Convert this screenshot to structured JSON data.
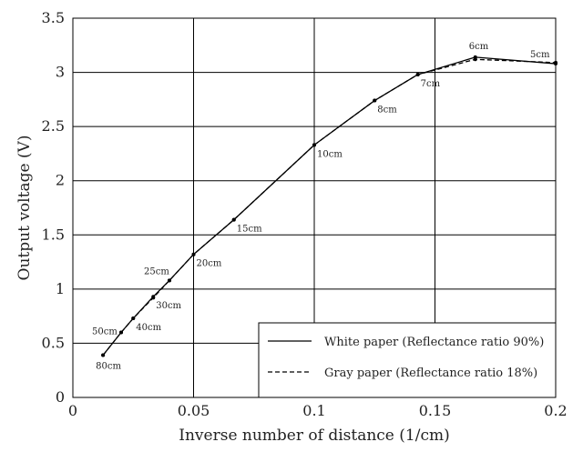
{
  "chart_data": {
    "type": "line",
    "title": "",
    "xlabel": "Inverse number of distance (1/cm)",
    "ylabel": "Output voltage (V)",
    "xlim": [
      0,
      0.2
    ],
    "ylim": [
      0,
      3.5
    ],
    "x_ticks": [
      0,
      0.05,
      0.1,
      0.15,
      0.2
    ],
    "x_tick_labels": [
      "0",
      "0.05",
      "0.1",
      "0.15",
      "0.2"
    ],
    "y_ticks": [
      0,
      0.5,
      1,
      1.5,
      2,
      2.5,
      3,
      3.5
    ],
    "y_tick_labels": [
      "0",
      "0.5",
      "1",
      "1.5",
      "2",
      "2.5",
      "3",
      "3.5"
    ],
    "grid": true,
    "legend_position": "bottom-right",
    "series": [
      {
        "name": "White paper (Reflectance ratio 90%)",
        "style": "solid",
        "color": "#000000",
        "x": [
          0.0125,
          0.02,
          0.025,
          0.0333,
          0.04,
          0.05,
          0.0667,
          0.1,
          0.125,
          0.1429,
          0.1667,
          0.2
        ],
        "y": [
          0.39,
          0.6,
          0.73,
          0.93,
          1.08,
          1.32,
          1.64,
          2.33,
          2.74,
          2.98,
          3.14,
          3.08
        ]
      },
      {
        "name": "Gray paper (Reflectance ratio 18%)",
        "style": "dashed",
        "color": "#000000",
        "x": [
          0.0125,
          0.02,
          0.025,
          0.0333,
          0.04,
          0.05,
          0.0667,
          0.1,
          0.125,
          0.1429,
          0.1667,
          0.2
        ],
        "y": [
          0.39,
          0.6,
          0.73,
          0.92,
          1.08,
          1.32,
          1.64,
          2.33,
          2.74,
          2.98,
          3.12,
          3.09
        ]
      }
    ],
    "point_labels": [
      {
        "x": 0.0125,
        "y": 0.39,
        "text": "80cm",
        "pos": "below"
      },
      {
        "x": 0.02,
        "y": 0.6,
        "text": "50cm",
        "pos": "left"
      },
      {
        "x": 0.025,
        "y": 0.73,
        "text": "40cm",
        "pos": "below-right"
      },
      {
        "x": 0.0333,
        "y": 0.93,
        "text": "30cm",
        "pos": "below-right"
      },
      {
        "x": 0.04,
        "y": 1.08,
        "text": "25cm",
        "pos": "above-left"
      },
      {
        "x": 0.05,
        "y": 1.32,
        "text": "20cm",
        "pos": "below-right"
      },
      {
        "x": 0.0667,
        "y": 1.64,
        "text": "15cm",
        "pos": "below-right"
      },
      {
        "x": 0.1,
        "y": 2.33,
        "text": "10cm",
        "pos": "below-right"
      },
      {
        "x": 0.125,
        "y": 2.74,
        "text": "8cm",
        "pos": "below-right"
      },
      {
        "x": 0.1429,
        "y": 2.98,
        "text": "7cm",
        "pos": "below-right"
      },
      {
        "x": 0.1667,
        "y": 3.14,
        "text": "6cm",
        "pos": "above"
      },
      {
        "x": 0.2,
        "y": 3.08,
        "text": "5cm",
        "pos": "above-left"
      }
    ]
  }
}
